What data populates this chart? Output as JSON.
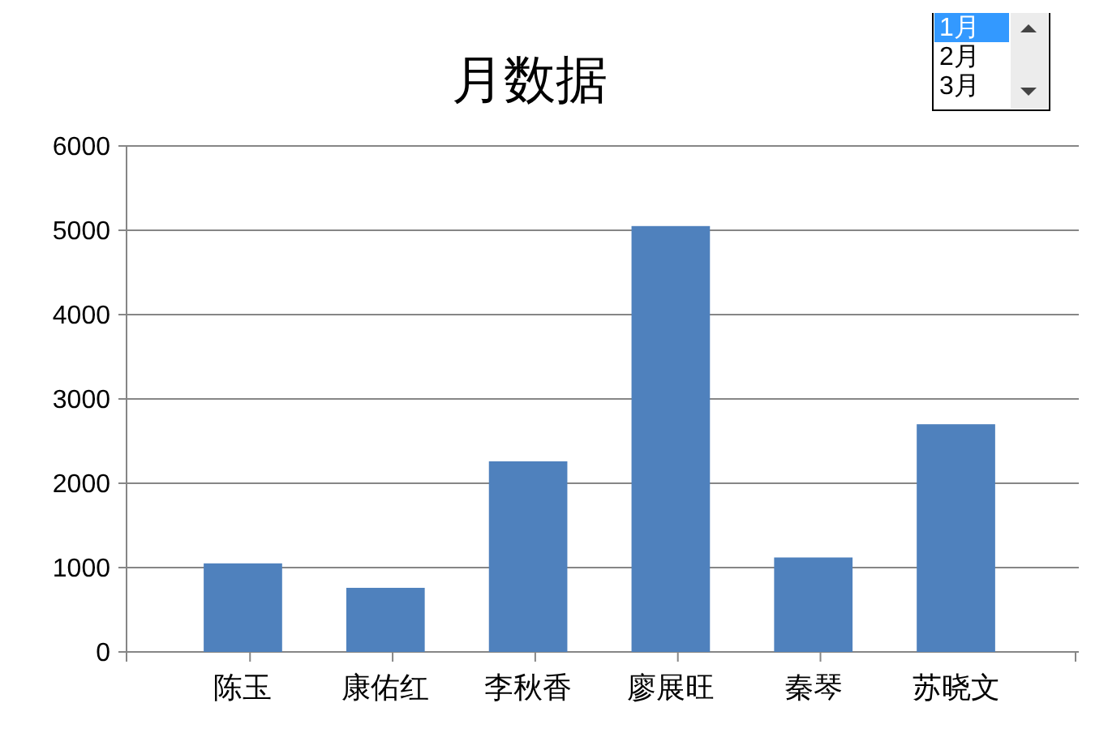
{
  "chart_data": {
    "type": "bar",
    "title": "月数据",
    "categories": [
      "陈玉",
      "康佑红",
      "李秋香",
      "廖展旺",
      "秦琴",
      "苏晓文"
    ],
    "values": [
      1050,
      760,
      2260,
      5050,
      1120,
      2700
    ],
    "color": "#4f81bd",
    "ylim": [
      0,
      6000
    ],
    "yticks": [
      0,
      1000,
      2000,
      3000,
      4000,
      5000,
      6000
    ],
    "grid": "y",
    "annotations": [
      "1月",
      "2月",
      "3月"
    ]
  }
}
